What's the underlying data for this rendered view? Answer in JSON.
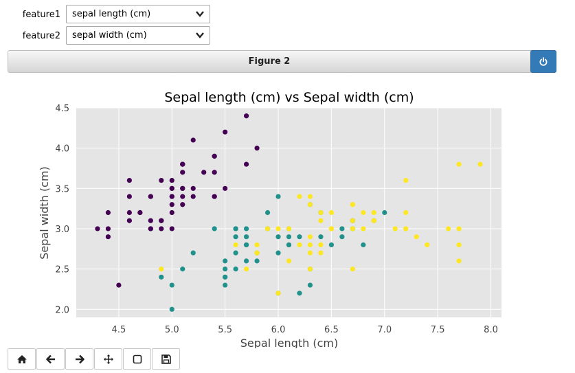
{
  "controls": {
    "feature1": {
      "label": "feature1",
      "value": "sepal length (cm)"
    },
    "feature2": {
      "label": "feature2",
      "value": "sepal width (cm)"
    }
  },
  "figure": {
    "title": "Figure 2"
  },
  "toolbar": {
    "buttons": [
      "home-icon",
      "back-arrow-icon",
      "forward-arrow-icon",
      "pan-icon",
      "zoom-rect-icon",
      "save-icon"
    ]
  },
  "colors": {
    "class0": "#440154",
    "class1": "#21918c",
    "class2": "#fde725",
    "plot_bg": "#e5e5e5",
    "accent": "#337ab7"
  },
  "chart_data": {
    "type": "scatter",
    "title": "Sepal length (cm) vs Sepal width (cm)",
    "xlabel": "Sepal length (cm)",
    "ylabel": "Sepal width (cm)",
    "xlim": [
      4.1,
      8.1
    ],
    "ylim": [
      1.9,
      4.5
    ],
    "xticks": [
      "4.5",
      "5.0",
      "5.5",
      "6.0",
      "6.5",
      "7.0",
      "7.5",
      "8.0"
    ],
    "yticks": [
      "2.0",
      "2.5",
      "3.0",
      "3.5",
      "4.0",
      "4.5"
    ],
    "grid": true,
    "series": [
      {
        "values": [
          [
            5.1,
            3.5
          ],
          [
            4.9,
            3.0
          ],
          [
            4.7,
            3.2
          ],
          [
            4.6,
            3.1
          ],
          [
            5.0,
            3.6
          ],
          [
            5.4,
            3.9
          ],
          [
            4.6,
            3.4
          ],
          [
            5.0,
            3.4
          ],
          [
            4.4,
            2.9
          ],
          [
            4.9,
            3.1
          ],
          [
            5.4,
            3.7
          ],
          [
            4.8,
            3.4
          ],
          [
            4.8,
            3.0
          ],
          [
            4.3,
            3.0
          ],
          [
            5.8,
            4.0
          ],
          [
            5.7,
            4.4
          ],
          [
            5.4,
            3.9
          ],
          [
            5.1,
            3.5
          ],
          [
            5.7,
            3.8
          ],
          [
            5.1,
            3.8
          ],
          [
            5.4,
            3.4
          ],
          [
            5.1,
            3.7
          ],
          [
            4.6,
            3.6
          ],
          [
            5.1,
            3.3
          ],
          [
            4.8,
            3.4
          ],
          [
            5.0,
            3.0
          ],
          [
            5.0,
            3.4
          ],
          [
            5.2,
            3.5
          ],
          [
            5.2,
            3.4
          ],
          [
            4.7,
            3.2
          ],
          [
            4.8,
            3.1
          ],
          [
            5.4,
            3.4
          ],
          [
            5.2,
            4.1
          ],
          [
            5.5,
            4.2
          ],
          [
            4.9,
            3.1
          ],
          [
            5.0,
            3.2
          ],
          [
            5.5,
            3.5
          ],
          [
            4.9,
            3.6
          ],
          [
            4.4,
            3.0
          ],
          [
            5.1,
            3.4
          ],
          [
            5.0,
            3.5
          ],
          [
            4.5,
            2.3
          ],
          [
            4.4,
            3.2
          ],
          [
            5.0,
            3.5
          ],
          [
            5.1,
            3.8
          ],
          [
            4.8,
            3.0
          ],
          [
            5.1,
            3.8
          ],
          [
            4.6,
            3.2
          ],
          [
            5.3,
            3.7
          ],
          [
            5.0,
            3.3
          ]
        ]
      },
      {
        "values": [
          [
            7.0,
            3.2
          ],
          [
            6.4,
            3.2
          ],
          [
            6.9,
            3.1
          ],
          [
            5.5,
            2.3
          ],
          [
            6.5,
            2.8
          ],
          [
            5.7,
            2.8
          ],
          [
            6.3,
            3.3
          ],
          [
            4.9,
            2.4
          ],
          [
            6.6,
            2.9
          ],
          [
            5.2,
            2.7
          ],
          [
            5.0,
            2.0
          ],
          [
            5.9,
            3.0
          ],
          [
            6.0,
            2.2
          ],
          [
            6.1,
            2.9
          ],
          [
            5.6,
            2.9
          ],
          [
            6.7,
            3.1
          ],
          [
            5.6,
            3.0
          ],
          [
            5.8,
            2.7
          ],
          [
            6.2,
            2.2
          ],
          [
            5.6,
            2.5
          ],
          [
            5.9,
            3.2
          ],
          [
            6.1,
            2.8
          ],
          [
            6.3,
            2.5
          ],
          [
            6.1,
            2.8
          ],
          [
            6.4,
            2.9
          ],
          [
            6.6,
            3.0
          ],
          [
            6.8,
            2.8
          ],
          [
            6.7,
            3.0
          ],
          [
            6.0,
            2.9
          ],
          [
            5.7,
            2.6
          ],
          [
            5.5,
            2.4
          ],
          [
            5.5,
            2.4
          ],
          [
            5.8,
            2.7
          ],
          [
            6.0,
            2.7
          ],
          [
            5.4,
            3.0
          ],
          [
            6.0,
            3.4
          ],
          [
            6.7,
            3.1
          ],
          [
            6.3,
            2.3
          ],
          [
            5.6,
            3.0
          ],
          [
            5.5,
            2.5
          ],
          [
            5.5,
            2.6
          ],
          [
            6.1,
            3.0
          ],
          [
            5.8,
            2.6
          ],
          [
            5.0,
            2.3
          ],
          [
            5.6,
            2.7
          ],
          [
            5.7,
            3.0
          ],
          [
            5.7,
            2.9
          ],
          [
            6.2,
            2.9
          ],
          [
            5.1,
            2.5
          ],
          [
            5.7,
            2.8
          ]
        ]
      },
      {
        "values": [
          [
            6.3,
            3.3
          ],
          [
            5.8,
            2.7
          ],
          [
            7.1,
            3.0
          ],
          [
            6.3,
            2.9
          ],
          [
            6.5,
            3.0
          ],
          [
            7.6,
            3.0
          ],
          [
            4.9,
            2.5
          ],
          [
            7.3,
            2.9
          ],
          [
            6.7,
            2.5
          ],
          [
            7.2,
            3.6
          ],
          [
            6.5,
            3.2
          ],
          [
            6.4,
            2.7
          ],
          [
            6.8,
            3.0
          ],
          [
            5.7,
            2.5
          ],
          [
            5.8,
            2.8
          ],
          [
            6.4,
            3.2
          ],
          [
            6.5,
            3.0
          ],
          [
            7.7,
            3.8
          ],
          [
            7.7,
            2.6
          ],
          [
            6.0,
            2.2
          ],
          [
            6.9,
            3.2
          ],
          [
            5.6,
            2.8
          ],
          [
            7.7,
            2.8
          ],
          [
            6.3,
            2.7
          ],
          [
            6.7,
            3.3
          ],
          [
            7.2,
            3.2
          ],
          [
            6.2,
            2.8
          ],
          [
            6.1,
            3.0
          ],
          [
            6.4,
            2.8
          ],
          [
            7.2,
            3.0
          ],
          [
            7.4,
            2.8
          ],
          [
            7.9,
            3.8
          ],
          [
            6.4,
            2.8
          ],
          [
            6.3,
            2.8
          ],
          [
            6.1,
            2.6
          ],
          [
            7.7,
            3.0
          ],
          [
            6.3,
            3.4
          ],
          [
            6.4,
            3.1
          ],
          [
            6.0,
            3.0
          ],
          [
            6.9,
            3.1
          ],
          [
            6.7,
            3.1
          ],
          [
            6.9,
            3.1
          ],
          [
            5.8,
            2.7
          ],
          [
            6.8,
            3.2
          ],
          [
            6.7,
            3.3
          ],
          [
            6.7,
            3.0
          ],
          [
            6.3,
            2.5
          ],
          [
            6.5,
            3.0
          ],
          [
            6.2,
            3.4
          ],
          [
            5.9,
            3.0
          ]
        ]
      }
    ]
  }
}
